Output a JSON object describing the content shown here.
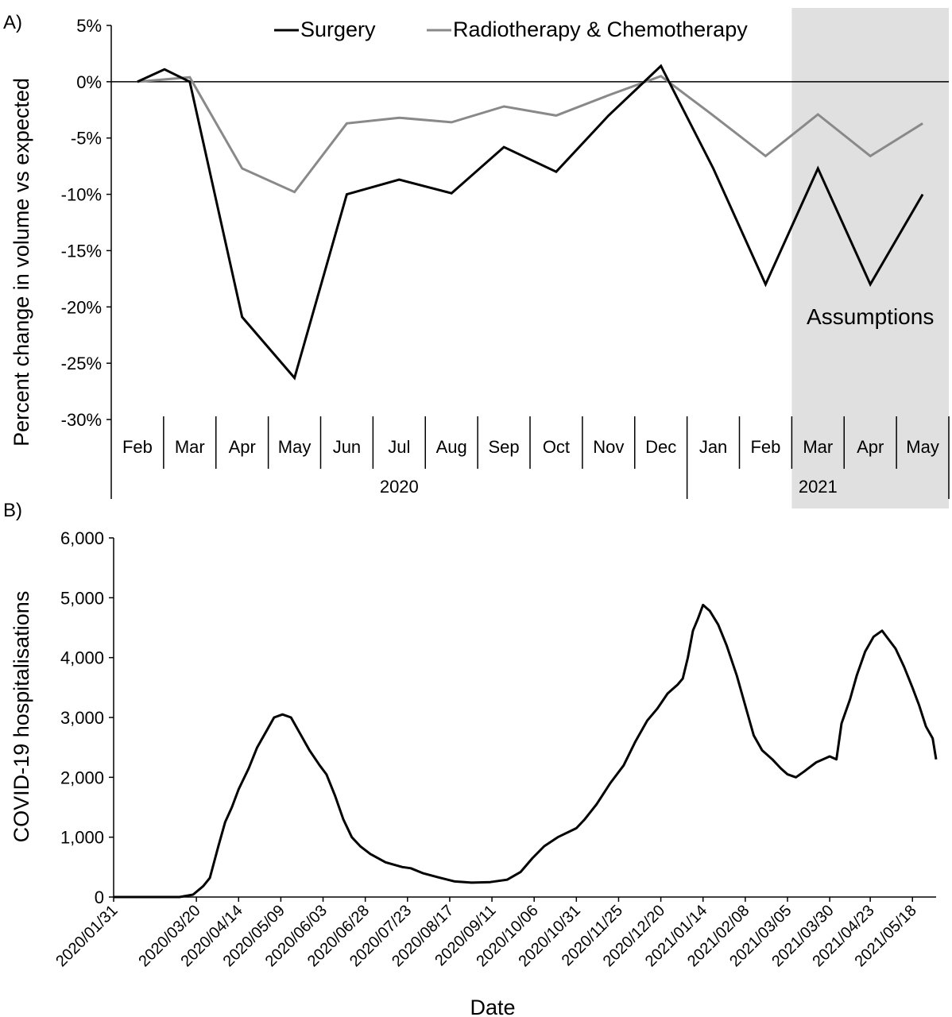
{
  "panel_a": {
    "label": "A)",
    "chart_data": {
      "type": "line",
      "ylabel": "Percent change in volume vs expected",
      "ylim": [
        -30,
        5
      ],
      "yticks": [
        5,
        0,
        -5,
        -10,
        -15,
        -20,
        -25,
        -30
      ],
      "ytick_labels": [
        "5%",
        "0%",
        "-5%",
        "-10%",
        "-15%",
        "-20%",
        "-25%",
        "-30%"
      ],
      "categories": [
        "Feb",
        "Mar",
        "Apr",
        "May",
        "Jun",
        "Jul",
        "Aug",
        "Sep",
        "Oct",
        "Nov",
        "Dec",
        "Jan",
        "Feb",
        "Mar",
        "Apr",
        "May"
      ],
      "category_dates": [
        "2020-02-15",
        "2020-03-15",
        "2020-04-15",
        "2020-05-15",
        "2020-06-15",
        "2020-07-15",
        "2020-08-15",
        "2020-09-15",
        "2020-10-15",
        "2020-11-15",
        "2020-12-15",
        "2021-01-15",
        "2021-02-15",
        "2021-03-15",
        "2021-04-15",
        "2021-05-15"
      ],
      "year_groups": [
        {
          "label": "2020",
          "count": 11
        },
        {
          "label": "2021",
          "count": 5
        }
      ],
      "series": [
        {
          "name": "Surgery",
          "color": "#000000",
          "points": [
            [
              "2020-02-15",
              0
            ],
            [
              "2020-03-01",
              1.1
            ],
            [
              "2020-03-15",
              0
            ],
            [
              "2020-04-15",
              -20.9
            ],
            [
              "2020-05-15",
              -26.3
            ],
            [
              "2020-06-15",
              -10.0
            ],
            [
              "2020-07-15",
              -8.7
            ],
            [
              "2020-08-15",
              -9.9
            ],
            [
              "2020-09-15",
              -5.8
            ],
            [
              "2020-10-15",
              -8.0
            ],
            [
              "2020-11-15",
              -3.0
            ],
            [
              "2020-12-15",
              1.4
            ],
            [
              "2021-01-15",
              -7.7
            ],
            [
              "2021-02-15",
              -18.0
            ],
            [
              "2021-03-15",
              -7.7
            ],
            [
              "2021-04-15",
              -18.0
            ],
            [
              "2021-05-15",
              -10.0
            ]
          ]
        },
        {
          "name": "Radiotherapy & Chemotherapy",
          "color": "#898989",
          "points": [
            [
              "2020-02-15",
              0
            ],
            [
              "2020-03-15",
              0.4
            ],
            [
              "2020-04-15",
              -7.7
            ],
            [
              "2020-05-15",
              -9.8
            ],
            [
              "2020-06-15",
              -3.7
            ],
            [
              "2020-07-15",
              -3.2
            ],
            [
              "2020-08-15",
              -3.6
            ],
            [
              "2020-09-15",
              -2.2
            ],
            [
              "2020-10-15",
              -3.0
            ],
            [
              "2020-11-15",
              -1.2
            ],
            [
              "2020-12-15",
              0.5
            ],
            [
              "2021-01-15",
              -3.0
            ],
            [
              "2021-02-15",
              -6.6
            ],
            [
              "2021-03-15",
              -2.9
            ],
            [
              "2021-04-15",
              -6.6
            ],
            [
              "2021-05-15",
              -3.7
            ]
          ]
        }
      ],
      "shaded_region": {
        "from_category_index": 13,
        "to_category_index": 15,
        "label": "Assumptions",
        "color": "#e0e0e0"
      },
      "legend_position": "top"
    }
  },
  "panel_b": {
    "label": "B)",
    "chart_data": {
      "type": "line",
      "xlabel": "Date",
      "ylabel": "COVID-19 hospitalisations",
      "ylim": [
        0,
        6000
      ],
      "yticks": [
        0,
        1000,
        2000,
        3000,
        4000,
        5000,
        6000
      ],
      "ytick_labels": [
        "0",
        "1,000",
        "2,000",
        "3,000",
        "4,000",
        "5,000",
        "6,000"
      ],
      "xlim": [
        "2020-01-31",
        "2021-06-01"
      ],
      "xtick_labels": [
        "2020/01/31",
        "2020/03/20",
        "2020/04/14",
        "2020/05/09",
        "2020/06/03",
        "2020/06/28",
        "2020/07/23",
        "2020/08/17",
        "2020/09/11",
        "2020/10/06",
        "2020/10/31",
        "2020/11/25",
        "2020/12/20",
        "2021/01/14",
        "2021/02/08",
        "2021/03/05",
        "2021/03/30",
        "2021/04/23",
        "2021/05/18"
      ],
      "series": [
        {
          "color": "#000000",
          "points": [
            [
              "2020-01-31",
              0
            ],
            [
              "2020-03-10",
              0
            ],
            [
              "2020-03-18",
              40
            ],
            [
              "2020-03-24",
              180
            ],
            [
              "2020-03-28",
              320
            ],
            [
              "2020-04-02",
              850
            ],
            [
              "2020-04-06",
              1250
            ],
            [
              "2020-04-10",
              1500
            ],
            [
              "2020-04-14",
              1800
            ],
            [
              "2020-04-20",
              2150
            ],
            [
              "2020-04-25",
              2500
            ],
            [
              "2020-05-01",
              2800
            ],
            [
              "2020-05-05",
              3000
            ],
            [
              "2020-05-10",
              3050
            ],
            [
              "2020-05-15",
              3000
            ],
            [
              "2020-05-20",
              2750
            ],
            [
              "2020-05-26",
              2450
            ],
            [
              "2020-06-01",
              2200
            ],
            [
              "2020-06-05",
              2050
            ],
            [
              "2020-06-10",
              1700
            ],
            [
              "2020-06-15",
              1300
            ],
            [
              "2020-06-20",
              1000
            ],
            [
              "2020-06-25",
              850
            ],
            [
              "2020-07-01",
              720
            ],
            [
              "2020-07-10",
              580
            ],
            [
              "2020-07-20",
              500
            ],
            [
              "2020-07-25",
              480
            ],
            [
              "2020-08-01",
              400
            ],
            [
              "2020-08-10",
              330
            ],
            [
              "2020-08-20",
              260
            ],
            [
              "2020-08-30",
              240
            ],
            [
              "2020-09-10",
              250
            ],
            [
              "2020-09-20",
              290
            ],
            [
              "2020-09-28",
              420
            ],
            [
              "2020-10-05",
              650
            ],
            [
              "2020-10-12",
              850
            ],
            [
              "2020-10-20",
              1000
            ],
            [
              "2020-10-31",
              1150
            ],
            [
              "2020-11-05",
              1300
            ],
            [
              "2020-11-12",
              1550
            ],
            [
              "2020-11-20",
              1900
            ],
            [
              "2020-11-28",
              2200
            ],
            [
              "2020-12-05",
              2600
            ],
            [
              "2020-12-12",
              2950
            ],
            [
              "2020-12-18",
              3150
            ],
            [
              "2020-12-24",
              3400
            ],
            [
              "2020-12-30",
              3550
            ],
            [
              "2021-01-02",
              3650
            ],
            [
              "2021-01-05",
              4000
            ],
            [
              "2021-01-08",
              4450
            ],
            [
              "2021-01-11",
              4650
            ],
            [
              "2021-01-14",
              4880
            ],
            [
              "2021-01-18",
              4780
            ],
            [
              "2021-01-23",
              4550
            ],
            [
              "2021-01-28",
              4200
            ],
            [
              "2021-02-03",
              3700
            ],
            [
              "2021-02-08",
              3200
            ],
            [
              "2021-02-13",
              2700
            ],
            [
              "2021-02-18",
              2450
            ],
            [
              "2021-02-24",
              2300
            ],
            [
              "2021-03-01",
              2150
            ],
            [
              "2021-03-05",
              2050
            ],
            [
              "2021-03-10",
              2000
            ],
            [
              "2021-03-15",
              2100
            ],
            [
              "2021-03-22",
              2250
            ],
            [
              "2021-03-30",
              2350
            ],
            [
              "2021-04-03",
              2300
            ],
            [
              "2021-04-06",
              2900
            ],
            [
              "2021-04-11",
              3300
            ],
            [
              "2021-04-15",
              3700
            ],
            [
              "2021-04-20",
              4100
            ],
            [
              "2021-04-25",
              4350
            ],
            [
              "2021-04-30",
              4450
            ],
            [
              "2021-05-04",
              4300
            ],
            [
              "2021-05-08",
              4150
            ],
            [
              "2021-05-13",
              3850
            ],
            [
              "2021-05-18",
              3500
            ],
            [
              "2021-05-22",
              3200
            ],
            [
              "2021-05-26",
              2850
            ],
            [
              "2021-05-30",
              2650
            ],
            [
              "2021-06-01",
              2300
            ]
          ]
        }
      ]
    }
  }
}
